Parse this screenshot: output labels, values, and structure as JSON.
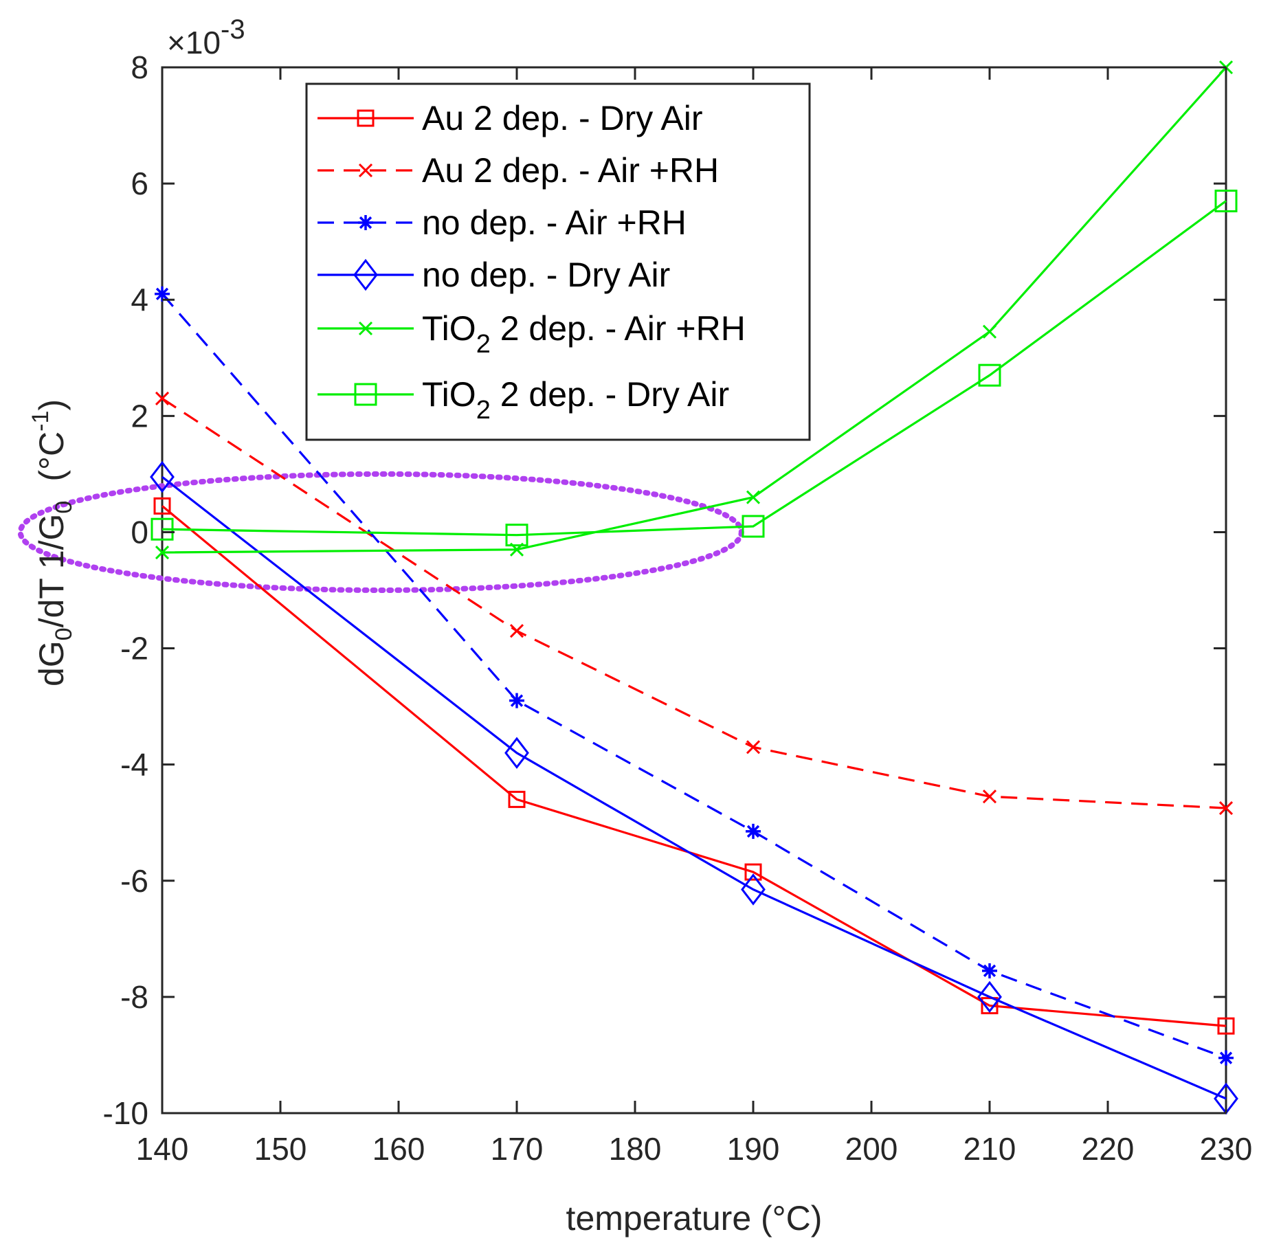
{
  "chart_data": {
    "type": "line",
    "xlabel": "temperature (°C)",
    "ylabel": "dG0/dT 1/G0 (°C-1)",
    "ylabel_parts": {
      "a": "dG",
      "a_sub": "0",
      "b": "/dT 1/G",
      "b_sub": "0",
      "unit_open": "(°C",
      "unit_sup": "-1",
      "unit_close": ")"
    },
    "y_multiplier": {
      "base": "×10",
      "exp": "-3"
    },
    "xlim": [
      140,
      230
    ],
    "ylim": [
      -10,
      8
    ],
    "xticks": [
      140,
      150,
      160,
      170,
      180,
      190,
      200,
      210,
      220,
      230
    ],
    "yticks": [
      -10,
      -8,
      -6,
      -4,
      -2,
      0,
      2,
      4,
      6,
      8
    ],
    "grid": false,
    "legend_position": "top-center",
    "series": [
      {
        "name": "Au 2 dep. - Dry Air",
        "color": "#ff0000",
        "dash": "solid",
        "marker": "square",
        "x": [
          140,
          170,
          190,
          210,
          230
        ],
        "y": [
          0.45,
          -4.6,
          -5.85,
          -8.15,
          -8.5
        ]
      },
      {
        "name": "Au 2 dep. - Air +RH",
        "color": "#ff0000",
        "dash": "dashed",
        "marker": "x",
        "x": [
          140,
          170,
          190,
          210,
          230
        ],
        "y": [
          2.3,
          -1.7,
          -3.7,
          -4.55,
          -4.75
        ]
      },
      {
        "name": "no dep. - Air +RH",
        "color": "#0000ff",
        "dash": "dashed",
        "marker": "star",
        "x": [
          140,
          170,
          190,
          210,
          230
        ],
        "y": [
          4.1,
          -2.9,
          -5.15,
          -7.55,
          -9.05
        ]
      },
      {
        "name": "no dep. - Dry Air",
        "color": "#0000ff",
        "dash": "solid",
        "marker": "diamond",
        "x": [
          140,
          170,
          190,
          210,
          230
        ],
        "y": [
          0.95,
          -3.8,
          -6.15,
          -8.0,
          -9.75
        ]
      },
      {
        "name": "TiO2 2 dep. - Air +RH",
        "label_main": "TiO",
        "label_sub": "2",
        "label_rest": " 2 dep. - Air +RH",
        "color": "#00ee00",
        "dash": "solid",
        "marker": "x",
        "x": [
          140,
          170,
          190,
          210,
          230
        ],
        "y": [
          -0.35,
          -0.3,
          0.6,
          3.45,
          8.0
        ]
      },
      {
        "name": "TiO2 2 dep. - Dry Air",
        "label_main": "TiO",
        "label_sub": "2",
        "label_rest": " 2 dep. - Dry Air",
        "color": "#00ee00",
        "dash": "solid",
        "marker": "bigsquare",
        "x": [
          140,
          170,
          190,
          210,
          230
        ],
        "y": [
          0.05,
          -0.05,
          0.1,
          2.7,
          5.7
        ]
      }
    ],
    "annotation": {
      "type": "dotted-ellipse",
      "color": "#b040f0",
      "center": [
        158.5,
        0
      ],
      "rx": 30.5,
      "ry": 1.0
    }
  }
}
